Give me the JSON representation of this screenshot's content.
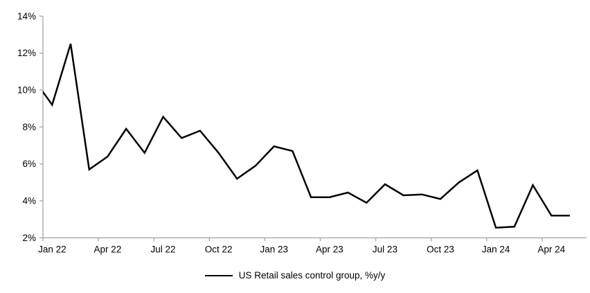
{
  "chart_data": {
    "type": "line",
    "title": "",
    "legend": "US Retail sales control group, %y/y",
    "legend_position": "bottom-center",
    "grid": false,
    "background": "#ffffff",
    "ylim": [
      2,
      14
    ],
    "y_tick_step": 2,
    "y_tick_labels": [
      "2%",
      "4%",
      "6%",
      "8%",
      "10%",
      "12%",
      "14%"
    ],
    "x_tick_labels": [
      {
        "label": "Jan 22",
        "month_index": 1
      },
      {
        "label": "Apr 22",
        "month_index": 4
      },
      {
        "label": "Jul 22",
        "month_index": 7
      },
      {
        "label": "Oct 22",
        "month_index": 10
      },
      {
        "label": "Jan 23",
        "month_index": 13
      },
      {
        "label": "Apr 23",
        "month_index": 16
      },
      {
        "label": "Jul 23",
        "month_index": 19
      },
      {
        "label": "Oct 23",
        "month_index": 22
      },
      {
        "label": "Jan 24",
        "month_index": 25
      },
      {
        "label": "Apr 24",
        "month_index": 28
      }
    ],
    "series": [
      {
        "name": "US Retail sales control group, %y/y",
        "color": "#000000",
        "months": [
          "Dec 21",
          "Jan 22",
          "Feb 22",
          "Mar 22",
          "Apr 22",
          "May 22",
          "Jun 22",
          "Jul 22",
          "Aug 22",
          "Sep 22",
          "Oct 22",
          "Nov 22",
          "Dec 22",
          "Jan 23",
          "Feb 23",
          "Mar 23",
          "Apr 23",
          "May 23",
          "Jun 23",
          "Jul 23",
          "Aug 23",
          "Sep 23",
          "Oct 23",
          "Nov 23",
          "Dec 23",
          "Jan 24",
          "Feb 24",
          "Mar 24",
          "Apr 24",
          "May 24"
        ],
        "values": [
          10.6,
          9.2,
          12.5,
          5.7,
          6.4,
          7.9,
          6.6,
          8.55,
          7.4,
          7.8,
          6.6,
          5.2,
          5.9,
          6.95,
          6.7,
          4.2,
          4.2,
          4.45,
          3.9,
          4.9,
          4.3,
          4.35,
          4.1,
          5.0,
          5.65,
          2.55,
          2.6,
          4.85,
          3.2,
          3.2
        ],
        "first_point_clipped_by_y_axis": true
      }
    ]
  },
  "colors": {
    "line": "#000000",
    "axis": "#a6a6a6",
    "text": "#000000",
    "background": "#ffffff"
  }
}
